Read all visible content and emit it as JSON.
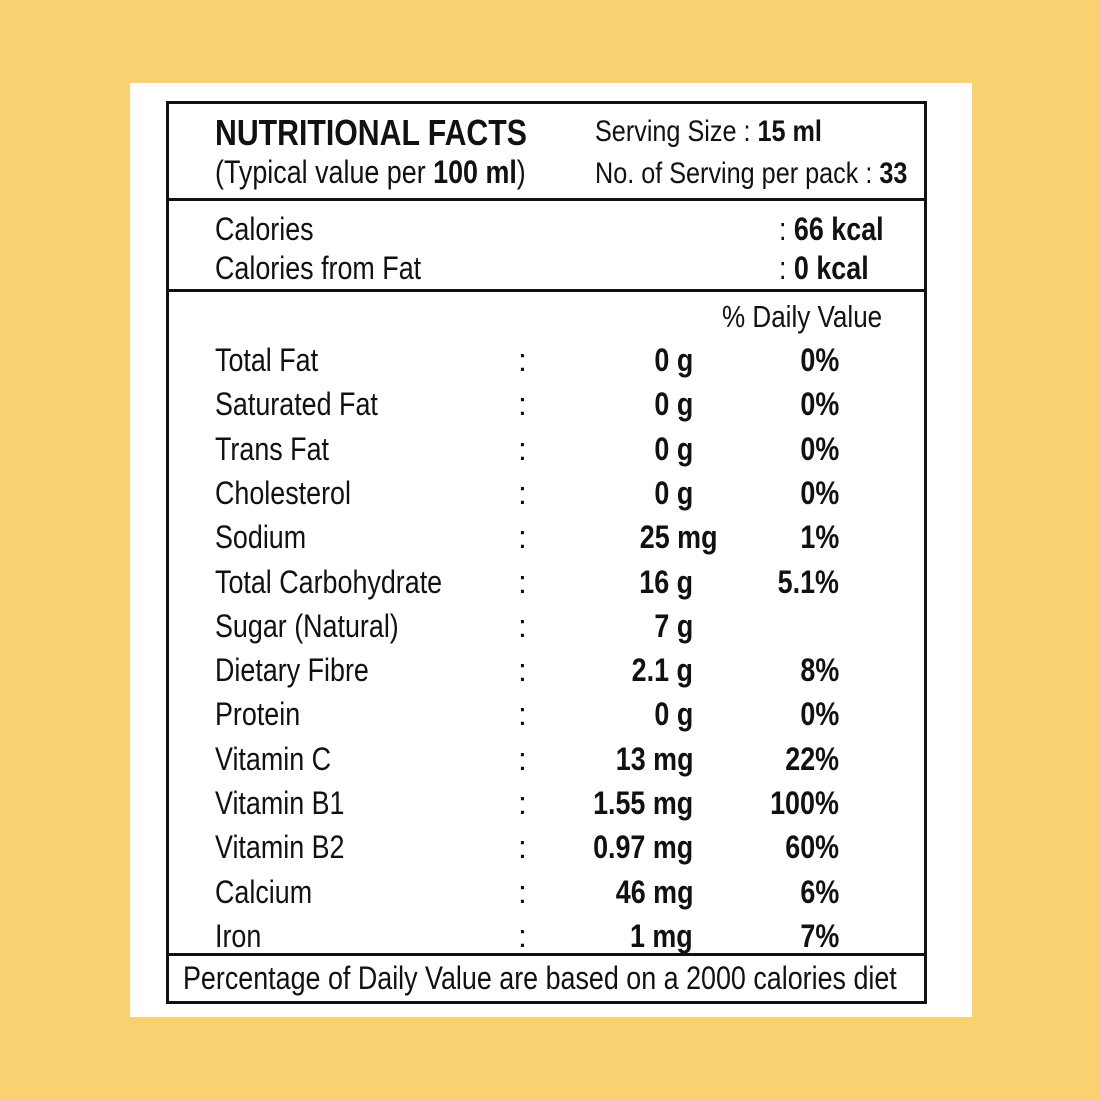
{
  "header": {
    "title": "NUTRITIONAL FACTS",
    "subtitle_prefix": "(Typical value per ",
    "subtitle_amount": "100 ml",
    "subtitle_suffix": ")",
    "serving_size_label": "Serving Size : ",
    "serving_size_value": "15 ml",
    "servings_per_pack_label": "No. of Serving per pack : ",
    "servings_per_pack_value": "33"
  },
  "calories": [
    {
      "label": "Calories",
      "value": ": 66 kcal",
      "colon": ": ",
      "amount": "66 kcal"
    },
    {
      "label": "Calories from Fat",
      "value": ": 0 kcal",
      "colon": ": ",
      "amount": "0 kcal"
    }
  ],
  "daily_value_header": "% Daily Value",
  "nutrients": [
    {
      "name": "Total Fat",
      "colon": ":",
      "amount": "0 g",
      "dv": "0%"
    },
    {
      "name": "Saturated Fat",
      "colon": ":",
      "amount": "0 g",
      "dv": "0%"
    },
    {
      "name": "Trans Fat",
      "colon": ":",
      "amount": "0 g",
      "dv": "0%"
    },
    {
      "name": "Cholesterol",
      "colon": ":",
      "amount": "0 g",
      "dv": "0%"
    },
    {
      "name": "Sodium",
      "colon": ":",
      "amount": "25 mg",
      "dv": "1%"
    },
    {
      "name": "Total Carbohydrate",
      "colon": ":",
      "amount": "16 g",
      "dv": "5.1%"
    },
    {
      "name": "Sugar (Natural)",
      "colon": ":",
      "amount": "7 g",
      "dv": ""
    },
    {
      "name": "Dietary Fibre",
      "colon": ":",
      "amount": "2.1 g",
      "dv": "8%"
    },
    {
      "name": "Protein",
      "colon": ":",
      "amount": "0 g",
      "dv": "0%"
    },
    {
      "name": "Vitamin C",
      "colon": ":",
      "amount": "13 mg",
      "dv": "22%"
    },
    {
      "name": "Vitamin B1",
      "colon": ":",
      "amount": "1.55 mg",
      "dv": "100%"
    },
    {
      "name": "Vitamin B2",
      "colon": ":",
      "amount": "0.97 mg",
      "dv": "60%"
    },
    {
      "name": "Calcium",
      "colon": ":",
      "amount": "46 mg",
      "dv": "6%"
    },
    {
      "name": "Iron",
      "colon": ":",
      "amount": "1 mg",
      "dv": "7%"
    }
  ],
  "footer": "Percentage of Daily Value are based on a 2000 calories diet",
  "colors": {
    "background": "#f9d072",
    "card": "#ffffff",
    "ink": "#111111"
  }
}
